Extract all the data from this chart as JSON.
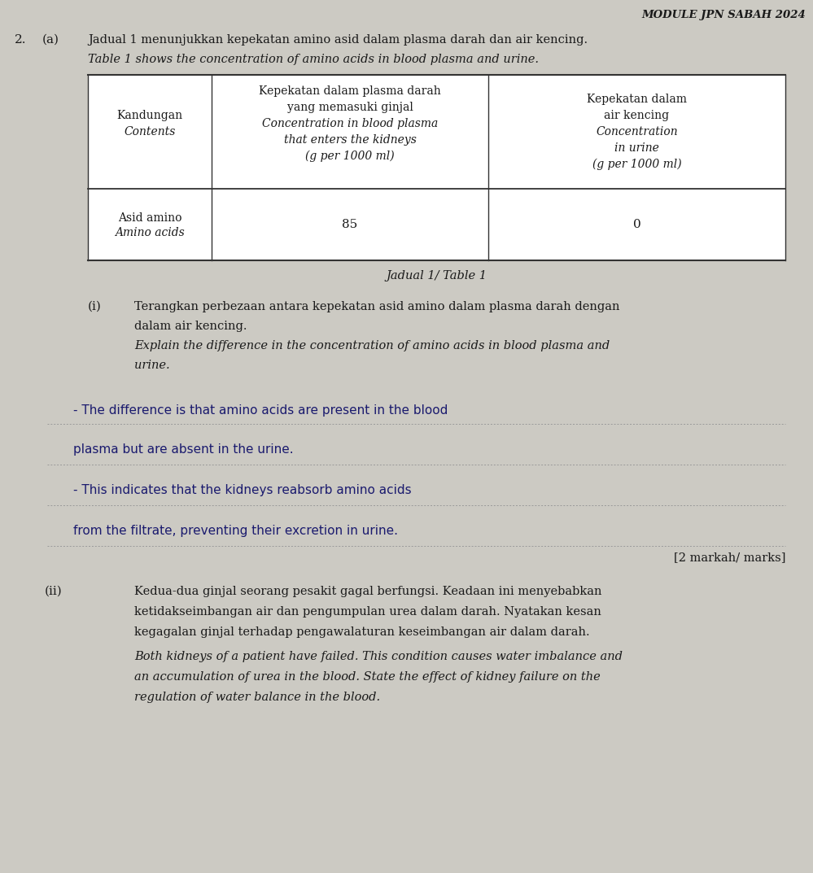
{
  "bg_color": "#cccac3",
  "page_width": 9.99,
  "page_height": 10.73,
  "dpi": 100,
  "header_text": "MODULE JPN SABAH 2024",
  "question_number": "2.",
  "part_a": "(a)",
  "intro_line1": "Jadual 1 menunjukkan kepekatan amino asid dalam plasma darah dan air kencing.",
  "intro_line2": "Table 1 shows the concentration of amino acids in blood plasma and urine.",
  "table_caption": "Jadual 1/ Table 1",
  "col1_header_line1": "Kandungan",
  "col1_header_line2": "Contents",
  "col2_header_line1": "Kepekatan dalam plasma darah",
  "col2_header_line2": "yang memasuki ginjal",
  "col2_header_line3": "Concentration in blood plasma",
  "col2_header_line4": "that enters the kidneys",
  "col2_header_line5": "(g per 1000 ml)",
  "col3_header_line1": "Kepekatan dalam",
  "col3_header_line2": "air kencing",
  "col3_header_line3": "Concentration",
  "col3_header_line4": "in urine",
  "col3_header_line5": "(g per 1000 ml)",
  "row1_col1_line1": "Asid amino",
  "row1_col1_line2": "Amino acids",
  "row1_col2": "85",
  "row1_col3": "0",
  "part_i_label": "(i)",
  "part_i_line1": "Terangkan perbezaan antara kepekatan asid amino dalam plasma darah dengan",
  "part_i_line2": "dalam air kencing.",
  "part_i_line3": "Explain the difference in the concentration of amino acids in blood plasma and",
  "part_i_line4": "urine.",
  "answer_line1_text": "- The difference is that amino acids are present in the blood",
  "answer_line2_text": "plasma but are absent in the urine.",
  "answer_line3_text": "- This indicates that the kidneys reabsorb amino acids",
  "answer_line4_text": "from the filtrate, preventing their excretion in urine.",
  "marks_text": "[2 markah/ marks]",
  "part_ii_label": "(ii)",
  "part_ii_body1": "Kedua-dua ginjal seorang pesakit gagal berfungsi. Keadaan ini menyebabkan",
  "part_ii_body2": "ketidakseimbangan air dan pengumpulan urea dalam darah. Nyatakan kesan",
  "part_ii_body3": "kegagalan ginjal terhadap pengawalaturan keseimbangan air dalam darah.",
  "part_ii_body4": "Both kidneys of a patient have failed. This condition causes water imbalance and",
  "part_ii_body5": "an accumulation of urea in the blood. State the effect of kidney failure on the",
  "part_ii_body6": "regulation of water balance in the blood."
}
